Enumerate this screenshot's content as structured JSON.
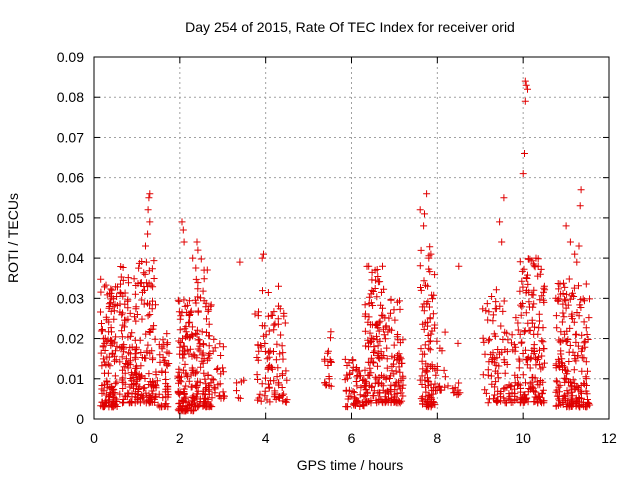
{
  "chart_data": {
    "type": "scatter",
    "title": "Day 254 of 2015, Rate Of TEC Index for receiver orid",
    "xlabel": "GPS time / hours",
    "ylabel": "ROTI / TECUs",
    "xlim": [
      0,
      12
    ],
    "ylim": [
      0,
      0.09
    ],
    "xticks": [
      "0",
      "2",
      "4",
      "6",
      "8",
      "10",
      "12"
    ],
    "yticks": [
      "0",
      "0.01",
      "0.02",
      "0.03",
      "0.04",
      "0.05",
      "0.06",
      "0.07",
      "0.08",
      "0.09"
    ],
    "xtick_values": [
      0,
      2,
      4,
      6,
      8,
      10,
      12
    ],
    "ytick_values": [
      0,
      0.01,
      0.02,
      0.03,
      0.04,
      0.05,
      0.06,
      0.07,
      0.08,
      0.09
    ],
    "grid": true,
    "marker": "+",
    "color": "#e00000",
    "series": [
      {
        "name": "ROTI",
        "clusters": [
          {
            "x": [
              0.15,
              0.55
            ],
            "ymin": 0.003,
            "ymax": 0.035,
            "n": 130
          },
          {
            "x": [
              0.6,
              1.0
            ],
            "ymin": 0.004,
            "ymax": 0.038,
            "n": 110
          },
          {
            "x": [
              1.0,
              1.45
            ],
            "ymin": 0.004,
            "ymax": 0.04,
            "n": 110
          },
          {
            "x": [
              1.45,
              1.75
            ],
            "ymin": 0.003,
            "ymax": 0.022,
            "n": 45
          },
          {
            "x": [
              1.95,
              2.35
            ],
            "ymin": 0.002,
            "ymax": 0.03,
            "n": 130
          },
          {
            "x": [
              2.35,
              2.75
            ],
            "ymin": 0.003,
            "ymax": 0.04,
            "n": 110
          },
          {
            "x": [
              2.75,
              3.05
            ],
            "ymin": 0.005,
            "ymax": 0.03,
            "n": 25
          },
          {
            "x": [
              3.3,
              3.5
            ],
            "ymin": 0.005,
            "ymax": 0.01,
            "n": 6
          },
          {
            "x": [
              3.75,
              4.2
            ],
            "ymin": 0.004,
            "ymax": 0.032,
            "n": 55
          },
          {
            "x": [
              4.2,
              4.5
            ],
            "ymin": 0.004,
            "ymax": 0.03,
            "n": 40
          },
          {
            "x": [
              5.35,
              5.55
            ],
            "ymin": 0.008,
            "ymax": 0.024,
            "n": 18
          },
          {
            "x": [
              5.85,
              6.3
            ],
            "ymin": 0.003,
            "ymax": 0.015,
            "n": 55
          },
          {
            "x": [
              6.3,
              6.75
            ],
            "ymin": 0.004,
            "ymax": 0.038,
            "n": 120
          },
          {
            "x": [
              6.75,
              7.2
            ],
            "ymin": 0.004,
            "ymax": 0.03,
            "n": 100
          },
          {
            "x": [
              7.6,
              7.95
            ],
            "ymin": 0.003,
            "ymax": 0.043,
            "n": 95
          },
          {
            "x": [
              7.95,
              8.25
            ],
            "ymin": 0.007,
            "ymax": 0.024,
            "n": 18
          },
          {
            "x": [
              8.35,
              8.55
            ],
            "ymin": 0.006,
            "ymax": 0.02,
            "n": 10
          },
          {
            "x": [
              9.05,
              9.45
            ],
            "ymin": 0.004,
            "ymax": 0.034,
            "n": 55
          },
          {
            "x": [
              9.45,
              9.9
            ],
            "ymin": 0.004,
            "ymax": 0.03,
            "n": 55
          },
          {
            "x": [
              9.9,
              10.5
            ],
            "ymin": 0.004,
            "ymax": 0.04,
            "n": 150
          },
          {
            "x": [
              10.75,
              11.15
            ],
            "ymin": 0.003,
            "ymax": 0.035,
            "n": 110
          },
          {
            "x": [
              11.15,
              11.55
            ],
            "ymin": 0.003,
            "ymax": 0.034,
            "n": 90
          }
        ],
        "outliers": [
          [
            1.3,
            0.056
          ],
          [
            1.28,
            0.055
          ],
          [
            1.26,
            0.052
          ],
          [
            1.3,
            0.049
          ],
          [
            1.25,
            0.046
          ],
          [
            1.2,
            0.043
          ],
          [
            1.22,
            0.039
          ],
          [
            2.05,
            0.049
          ],
          [
            2.08,
            0.047
          ],
          [
            2.1,
            0.044
          ],
          [
            2.4,
            0.044
          ],
          [
            2.42,
            0.042
          ],
          [
            2.3,
            0.04
          ],
          [
            3.4,
            0.039
          ],
          [
            3.95,
            0.041
          ],
          [
            3.92,
            0.04
          ],
          [
            4.3,
            0.033
          ],
          [
            6.4,
            0.038
          ],
          [
            6.55,
            0.037
          ],
          [
            7.75,
            0.056
          ],
          [
            7.6,
            0.052
          ],
          [
            7.7,
            0.051
          ],
          [
            7.68,
            0.048
          ],
          [
            7.85,
            0.041
          ],
          [
            7.8,
            0.04
          ],
          [
            8.5,
            0.038
          ],
          [
            9.55,
            0.055
          ],
          [
            9.45,
            0.049
          ],
          [
            9.5,
            0.044
          ],
          [
            10.05,
            0.084
          ],
          [
            10.07,
            0.083
          ],
          [
            10.1,
            0.082
          ],
          [
            10.05,
            0.079
          ],
          [
            10.03,
            0.066
          ],
          [
            10.0,
            0.061
          ],
          [
            10.3,
            0.04
          ],
          [
            10.35,
            0.038
          ],
          [
            10.4,
            0.036
          ],
          [
            11.35,
            0.057
          ],
          [
            11.33,
            0.053
          ],
          [
            11.0,
            0.048
          ],
          [
            11.1,
            0.044
          ],
          [
            11.3,
            0.043
          ],
          [
            11.2,
            0.041
          ],
          [
            11.25,
            0.039
          ]
        ]
      }
    ]
  }
}
